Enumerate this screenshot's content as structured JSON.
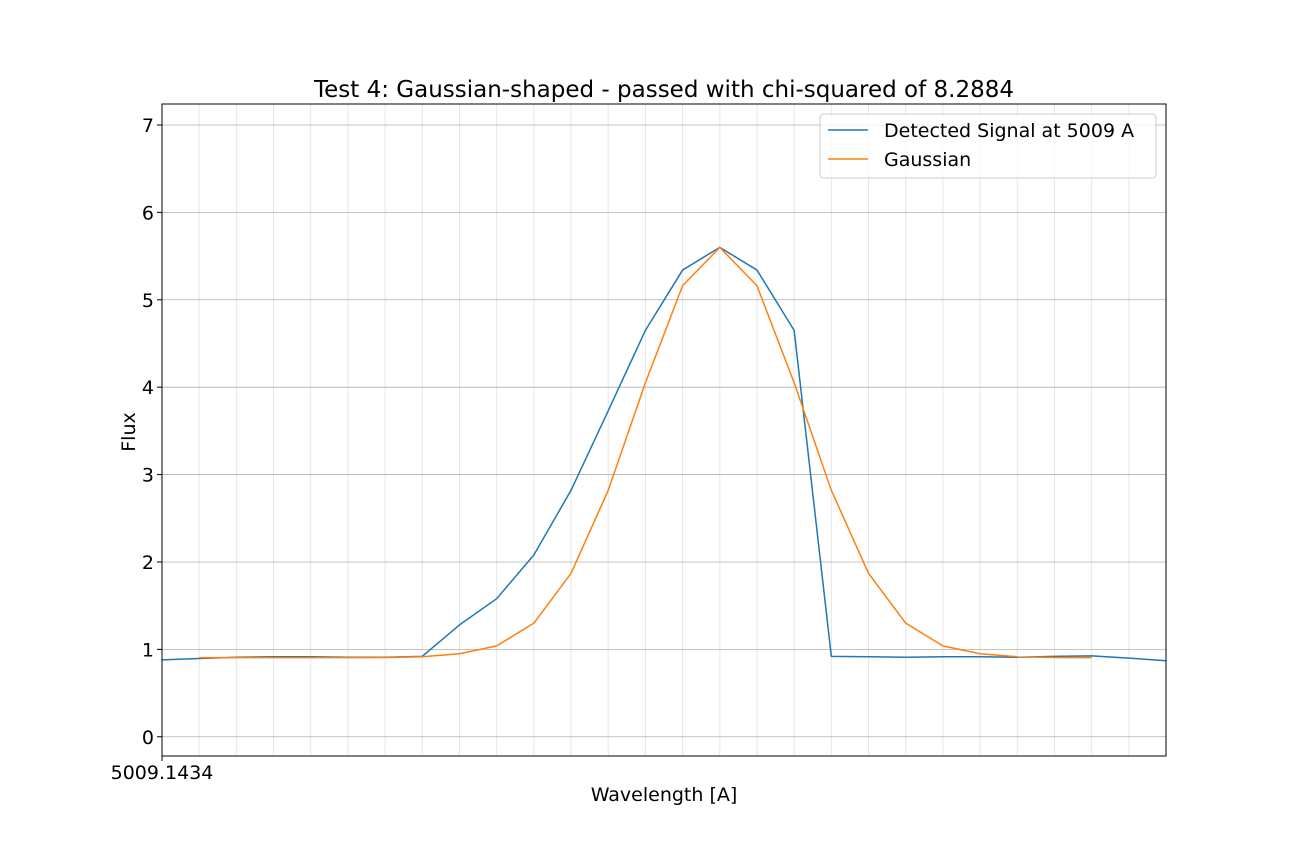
{
  "chart_data": {
    "type": "line",
    "title": "Test 4: Gaussian-shaped - passed with chi-squared of 8.2884",
    "xlabel": "Wavelength [A]",
    "ylabel": "Flux",
    "x_tick_label": "5009.1434",
    "xlim": [
      0,
      27
    ],
    "ylim": [
      -0.22,
      7.24
    ],
    "y_ticks": [
      0,
      1,
      2,
      3,
      4,
      5,
      6,
      7
    ],
    "grid": true,
    "legend_position": "top-right",
    "series": [
      {
        "name": "Detected Signal at 5009 A",
        "color": "#1f77b4",
        "x": [
          0,
          1,
          2,
          3,
          4,
          5,
          6,
          7,
          8,
          9,
          10,
          11,
          12,
          13,
          14,
          15,
          16,
          17,
          18,
          19,
          20,
          21,
          22,
          23,
          24,
          25,
          26,
          27
        ],
        "y": [
          0.88,
          0.895,
          0.91,
          0.915,
          0.915,
          0.91,
          0.91,
          0.92,
          1.28,
          1.58,
          2.08,
          2.82,
          3.73,
          4.65,
          5.34,
          5.6,
          5.34,
          4.65,
          0.92,
          0.915,
          0.91,
          0.915,
          0.915,
          0.91,
          0.92,
          0.925,
          0.9,
          0.87
        ]
      },
      {
        "name": "Gaussian",
        "color": "#ff7f0e",
        "x": [
          1,
          2,
          3,
          4,
          5,
          6,
          7,
          8,
          9,
          10,
          11,
          12,
          13,
          14,
          15,
          16,
          17,
          18,
          19,
          20,
          21,
          22,
          23,
          24,
          25
        ],
        "y": [
          0.905,
          0.905,
          0.905,
          0.905,
          0.905,
          0.907,
          0.915,
          0.95,
          1.04,
          1.3,
          1.87,
          2.82,
          4.05,
          5.16,
          5.6,
          5.16,
          4.05,
          2.82,
          1.87,
          1.3,
          1.04,
          0.95,
          0.915,
          0.907,
          0.905
        ]
      }
    ]
  }
}
